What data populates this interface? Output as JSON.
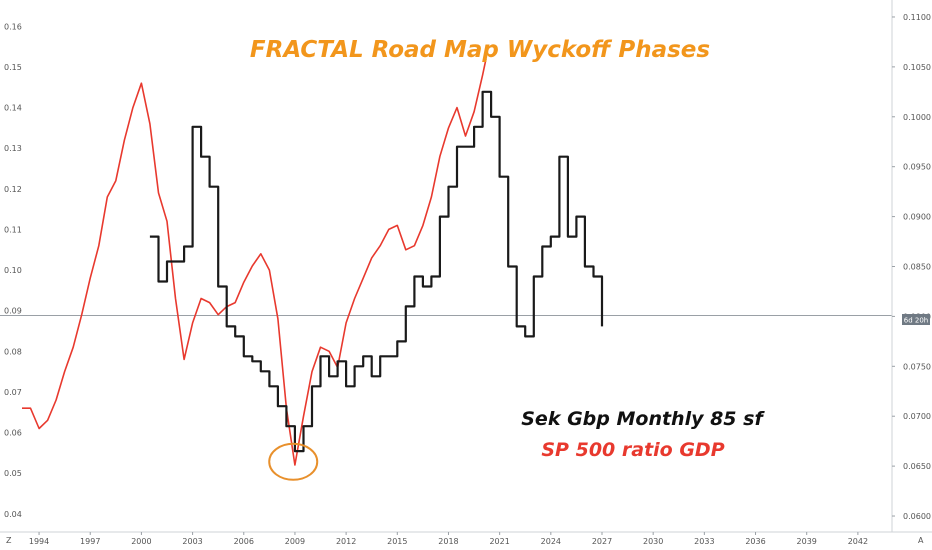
{
  "chart_data": {
    "type": "line",
    "title": "FRACTAL Road Map Wyckoff Phases",
    "annotation_lines": [
      "Sek Gbp Monthly 85 sf",
      "SP 500 ratio GDP"
    ],
    "x_ticks": [
      "1994",
      "1997",
      "2000",
      "2003",
      "2006",
      "2009",
      "2012",
      "2015",
      "2018",
      "2021",
      "2024",
      "2027",
      "2030",
      "2033",
      "2036",
      "2039",
      "2042"
    ],
    "xlim": [
      1993,
      2044
    ],
    "left_axis": {
      "ticks": [
        "0.04",
        "0.05",
        "0.06",
        "0.07",
        "0.08",
        "0.09",
        "0.10",
        "0.11",
        "0.12",
        "0.13",
        "0.14",
        "0.15",
        "0.16"
      ],
      "ylim": [
        0.036,
        0.166
      ]
    },
    "right_axis": {
      "ticks": [
        "0.0600",
        "0.0650",
        "0.0700",
        "0.0750",
        "0.0800",
        "0.0850",
        "0.0900",
        "0.0950",
        "0.1000",
        "0.1050",
        "0.1100"
      ],
      "ylim": [
        0.0586,
        0.1115
      ],
      "last_value_label": "6d 20h"
    },
    "reference_line_value": 0.0888,
    "corner_left": "Z",
    "corner_right": "A",
    "highlight": {
      "x": 2008.9,
      "y": 0.0528,
      "color": "#e8902c"
    },
    "series": [
      {
        "name": "SP 500 ratio GDP",
        "color": "#e8392e",
        "x": [
          1993.0,
          1993.5,
          1994.0,
          1994.5,
          1995.0,
          1995.5,
          1996.0,
          1996.5,
          1997.0,
          1997.5,
          1998.0,
          1998.5,
          1999.0,
          1999.5,
          2000.0,
          2000.5,
          2001.0,
          2001.5,
          2002.0,
          2002.5,
          2003.0,
          2003.5,
          2004.0,
          2004.5,
          2005.0,
          2005.5,
          2006.0,
          2006.5,
          2007.0,
          2007.5,
          2008.0,
          2008.5,
          2009.0,
          2009.5,
          2010.0,
          2010.5,
          2011.0,
          2011.5,
          2012.0,
          2012.5,
          2013.0,
          2013.5,
          2014.0,
          2014.5,
          2015.0,
          2015.5,
          2016.0,
          2016.5,
          2017.0,
          2017.5,
          2018.0,
          2018.5,
          2019.0,
          2019.5,
          2020.0,
          2020.2
        ],
        "y": [
          0.066,
          0.066,
          0.061,
          0.063,
          0.068,
          0.075,
          0.081,
          0.089,
          0.098,
          0.106,
          0.118,
          0.122,
          0.132,
          0.14,
          0.146,
          0.136,
          0.119,
          0.112,
          0.093,
          0.078,
          0.087,
          0.093,
          0.092,
          0.089,
          0.091,
          0.092,
          0.097,
          0.101,
          0.104,
          0.1,
          0.088,
          0.066,
          0.052,
          0.064,
          0.075,
          0.081,
          0.08,
          0.076,
          0.087,
          0.093,
          0.098,
          0.103,
          0.106,
          0.11,
          0.111,
          0.105,
          0.106,
          0.111,
          0.118,
          0.128,
          0.135,
          0.14,
          0.133,
          0.139,
          0.148,
          0.152
        ]
      },
      {
        "name": "Sek Gbp Monthly 85 sf",
        "color": "#1a1a1a",
        "axis": "right",
        "x": [
          2000.5,
          2001.0,
          2001.5,
          2002.0,
          2002.5,
          2003.0,
          2003.5,
          2004.0,
          2004.5,
          2005.0,
          2005.5,
          2006.0,
          2006.5,
          2007.0,
          2007.5,
          2008.0,
          2008.5,
          2009.0,
          2009.5,
          2010.0,
          2010.5,
          2011.0,
          2011.5,
          2012.0,
          2012.5,
          2013.0,
          2013.5,
          2014.0,
          2014.5,
          2015.0,
          2015.5,
          2016.0,
          2016.5,
          2017.0,
          2017.5,
          2018.0,
          2018.5,
          2019.0,
          2019.5,
          2020.0,
          2020.5,
          2021.0,
          2021.5,
          2022.0,
          2022.5,
          2023.0,
          2023.5,
          2024.0,
          2024.5,
          2025.0,
          2025.5,
          2026.0,
          2026.5,
          2027.0
        ],
        "y": [
          0.088,
          0.0835,
          0.0855,
          0.0855,
          0.087,
          0.099,
          0.096,
          0.093,
          0.083,
          0.079,
          0.078,
          0.076,
          0.0755,
          0.0745,
          0.073,
          0.071,
          0.069,
          0.0665,
          0.069,
          0.073,
          0.076,
          0.074,
          0.0755,
          0.073,
          0.075,
          0.076,
          0.074,
          0.076,
          0.076,
          0.0775,
          0.081,
          0.084,
          0.083,
          0.084,
          0.09,
          0.093,
          0.097,
          0.097,
          0.099,
          0.1025,
          0.1,
          0.094,
          0.085,
          0.079,
          0.078,
          0.084,
          0.087,
          0.088,
          0.096,
          0.088,
          0.09,
          0.085,
          0.084,
          0.079
        ]
      }
    ]
  }
}
